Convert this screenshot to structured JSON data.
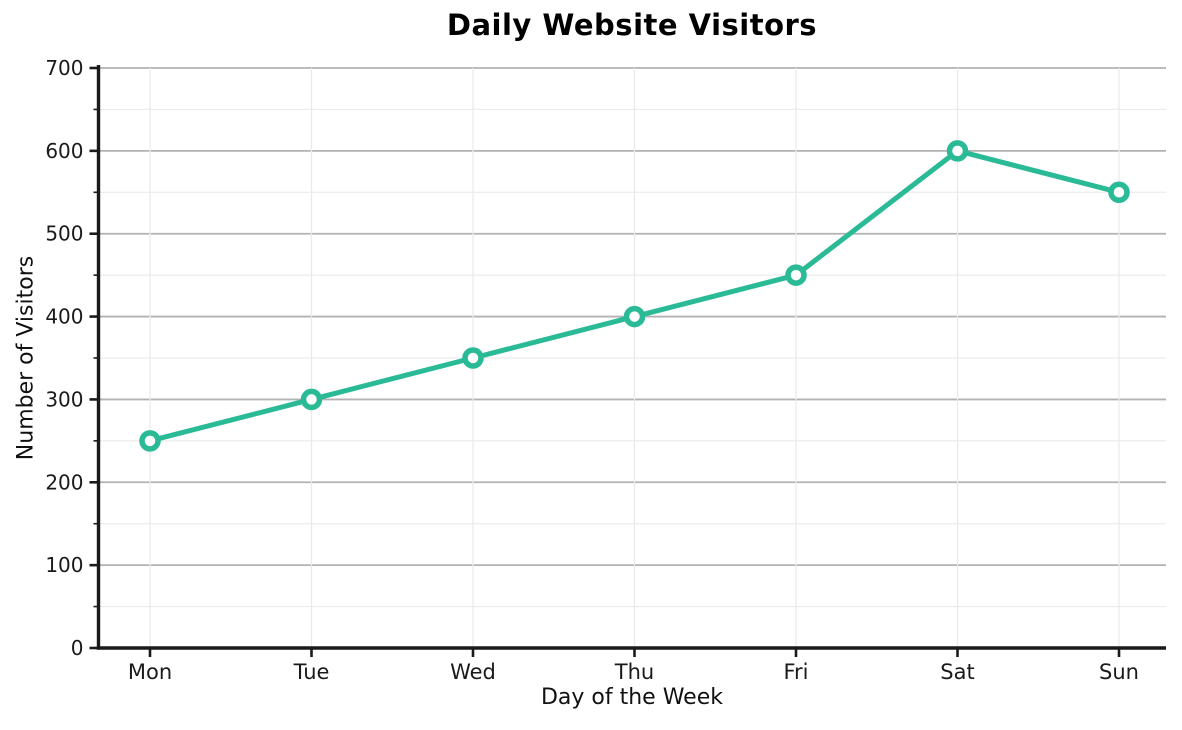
{
  "chart_data": {
    "type": "line",
    "title": "Daily Website Visitors",
    "xlabel": "Day of the Week",
    "ylabel": "Number of Visitors",
    "categories": [
      "Mon",
      "Tue",
      "Wed",
      "Thu",
      "Fri",
      "Sat",
      "Sun"
    ],
    "series": [
      {
        "name": "Daily visitors",
        "values": [
          250,
          300,
          350,
          400,
          450,
          600,
          550
        ]
      }
    ],
    "ylim": [
      0,
      700
    ],
    "y_major_ticks": [
      0,
      100,
      200,
      300,
      400,
      500,
      600,
      700
    ],
    "y_minor_step": 50,
    "grid": {
      "horizontal_major": true,
      "horizontal_minor": true,
      "vertical_at_categories": true
    },
    "legend": "none",
    "marker_style": "open-circle",
    "colors": {
      "line": "#2aba96",
      "marker_fill": "#ffffff",
      "grid_major": "#b2b2b2",
      "grid_minor": "#ececec",
      "grid_vertical": "#eaeaea",
      "axis": "#1a1a1a",
      "text": "#1a1a1a",
      "title_text": "#000000",
      "background": "#ffffff"
    }
  }
}
